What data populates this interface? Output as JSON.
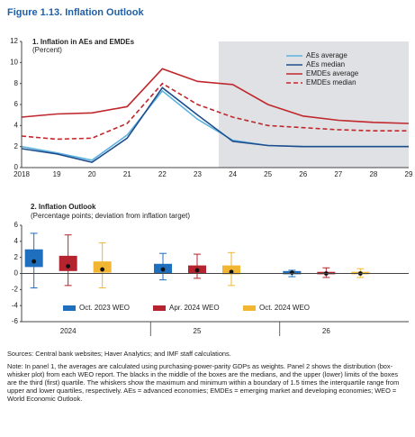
{
  "title": "Figure 1.13. Inflation Outlook",
  "chart_data": [
    {
      "type": "line",
      "title": "1. Inflation in AEs and EMDEs",
      "subtitle": "(Percent)",
      "categories": [
        "2018",
        "19",
        "20",
        "21",
        "22",
        "23",
        "24",
        "25",
        "26",
        "27",
        "28",
        "29"
      ],
      "ylim": [
        0,
        12
      ],
      "yticks": [
        0,
        2,
        4,
        6,
        8,
        10,
        12
      ],
      "series": [
        {
          "name": "AEs average",
          "color": "#5fb3e0",
          "values": [
            2.0,
            1.4,
            0.7,
            3.1,
            7.3,
            4.6,
            2.6,
            2.1,
            2.0,
            2.0,
            2.0,
            2.0
          ]
        },
        {
          "name": "AEs median",
          "color": "#1f4e8c",
          "values": [
            1.8,
            1.3,
            0.5,
            2.8,
            7.6,
            5.0,
            2.5,
            2.1,
            2.0,
            2.0,
            2.0,
            2.0
          ]
        },
        {
          "name": "EMDEs average",
          "color": "#c0282d",
          "values": [
            4.8,
            5.1,
            5.2,
            5.8,
            9.4,
            8.2,
            7.9,
            6.0,
            4.9,
            4.5,
            4.3,
            4.2
          ]
        },
        {
          "name": "EMDEs median",
          "color": "#c0282d",
          "dashed": true,
          "values": [
            3.0,
            2.7,
            2.8,
            4.2,
            8.0,
            6.0,
            4.8,
            4.0,
            3.8,
            3.6,
            3.5,
            3.5
          ]
        }
      ]
    },
    {
      "type": "box",
      "title": "2. Inflation Outlook",
      "subtitle": "(Percentage points; deviation from inflation target)",
      "categories": [
        "2024",
        "25",
        "26"
      ],
      "ylim": [
        -6,
        6
      ],
      "yticks": [
        -6,
        -4,
        -2,
        0,
        2,
        4,
        6
      ],
      "series": [
        {
          "name": "Oct. 2023 WEO",
          "color": "#1f6fbf",
          "values": [
            {
              "low": -1.8,
              "q1": 0.8,
              "median": 1.5,
              "q3": 3.0,
              "high": 5.0
            },
            {
              "low": -0.8,
              "q1": 0.0,
              "median": 0.5,
              "q3": 1.2,
              "high": 2.5
            },
            {
              "low": -0.4,
              "q1": -0.1,
              "median": 0.1,
              "q3": 0.3,
              "high": 0.4
            }
          ]
        },
        {
          "name": "Apr. 2024 WEO",
          "color": "#b5242e",
          "values": [
            {
              "low": -1.5,
              "q1": 0.3,
              "median": 0.9,
              "q3": 2.2,
              "high": 4.8
            },
            {
              "low": -0.6,
              "q1": 0.0,
              "median": 0.4,
              "q3": 1.0,
              "high": 2.4
            },
            {
              "low": -0.5,
              "q1": -0.1,
              "median": 0.0,
              "q3": 0.2,
              "high": 0.7
            }
          ]
        },
        {
          "name": "Oct. 2024 WEO",
          "color": "#f2b632",
          "values": [
            {
              "low": -1.8,
              "q1": 0.1,
              "median": 0.5,
              "q3": 1.5,
              "high": 3.8
            },
            {
              "low": -1.5,
              "q1": -0.1,
              "median": 0.2,
              "q3": 1.0,
              "high": 2.6
            },
            {
              "low": -0.5,
              "q1": -0.1,
              "median": 0.0,
              "q3": 0.2,
              "high": 0.6
            }
          ]
        }
      ]
    }
  ],
  "sources": "Sources: Central bank websites; Haver Analytics; and IMF staff calculations.",
  "note": "Note: In panel 1, the averages are calculated using purchasing-power-parity GDPs as weights. Panel 2 shows the distribution (box-whisker plot) from each WEO report. The blacks in the middle of the boxes are the medians, and the upper (lower) limits of the boxes are the third (first) quartile. The whiskers show the maximum and minimum within a boundary of 1.5 times the interquartile range from upper and lower quartiles, respectively. AEs = advanced economies; EMDEs = emerging market and developing economies; WEO = World Economic Outlook."
}
